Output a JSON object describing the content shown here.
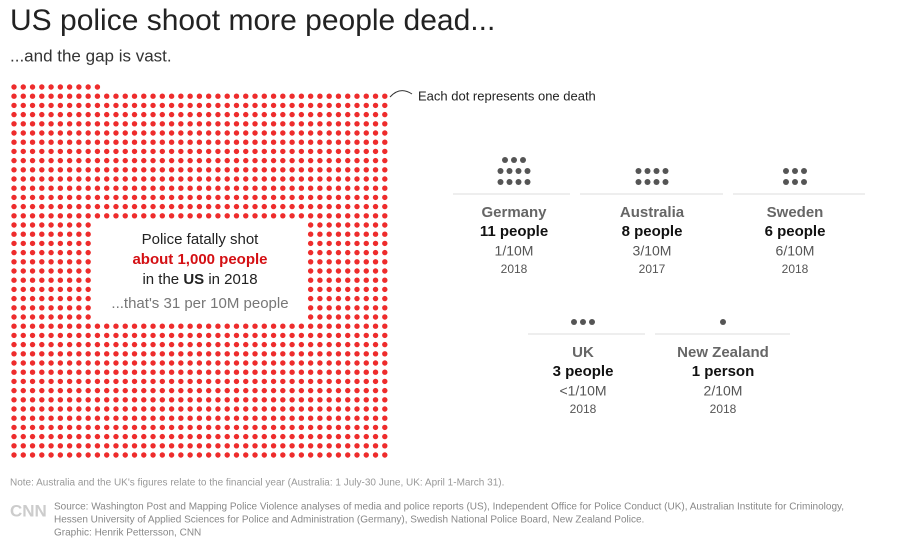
{
  "title": "US police shoot more people dead...",
  "subtitle": "...and the gap is vast.",
  "legend_note": "Each dot represents one death",
  "us": {
    "line1": "Police fatally shot",
    "highlight": "about 1,000 people",
    "line3_pre": "in the ",
    "line3_bold": "US",
    "line3_post": " in 2018",
    "rate_note": "...that's 31 per 10M people"
  },
  "countries": [
    {
      "name": "Germany",
      "label": "11 people",
      "deaths": 11,
      "rate": "1/10M",
      "year": "2018"
    },
    {
      "name": "Australia",
      "label": "8 people",
      "deaths": 8,
      "rate": "3/10M",
      "year": "2017"
    },
    {
      "name": "Sweden",
      "label": "6 people",
      "deaths": 6,
      "rate": "6/10M",
      "year": "2018"
    },
    {
      "name": "UK",
      "label": "3 people",
      "deaths": 3,
      "rate": "<1/10M",
      "year": "2018"
    },
    {
      "name": "New Zealand",
      "label": "1 person",
      "deaths": 1,
      "rate": "2/10M",
      "year": "2018"
    }
  ],
  "note": "Note: Australia and the UK's figures relate to the financial year (Australia: 1 July-30 June, UK: April 1-March 31).",
  "logo": "CNN",
  "source": [
    "Source: Washington Post and Mapping Police Violence analyses of media and police reports (US), Independent Office for Police Conduct (UK), Australian Institute for Criminology,",
    "Hessen University of Applied Sciences for Police and Administration (Germany), Swedish National Police Board, New Zealand Police.",
    "Graphic: Henrik Pettersson, CNN"
  ]
}
